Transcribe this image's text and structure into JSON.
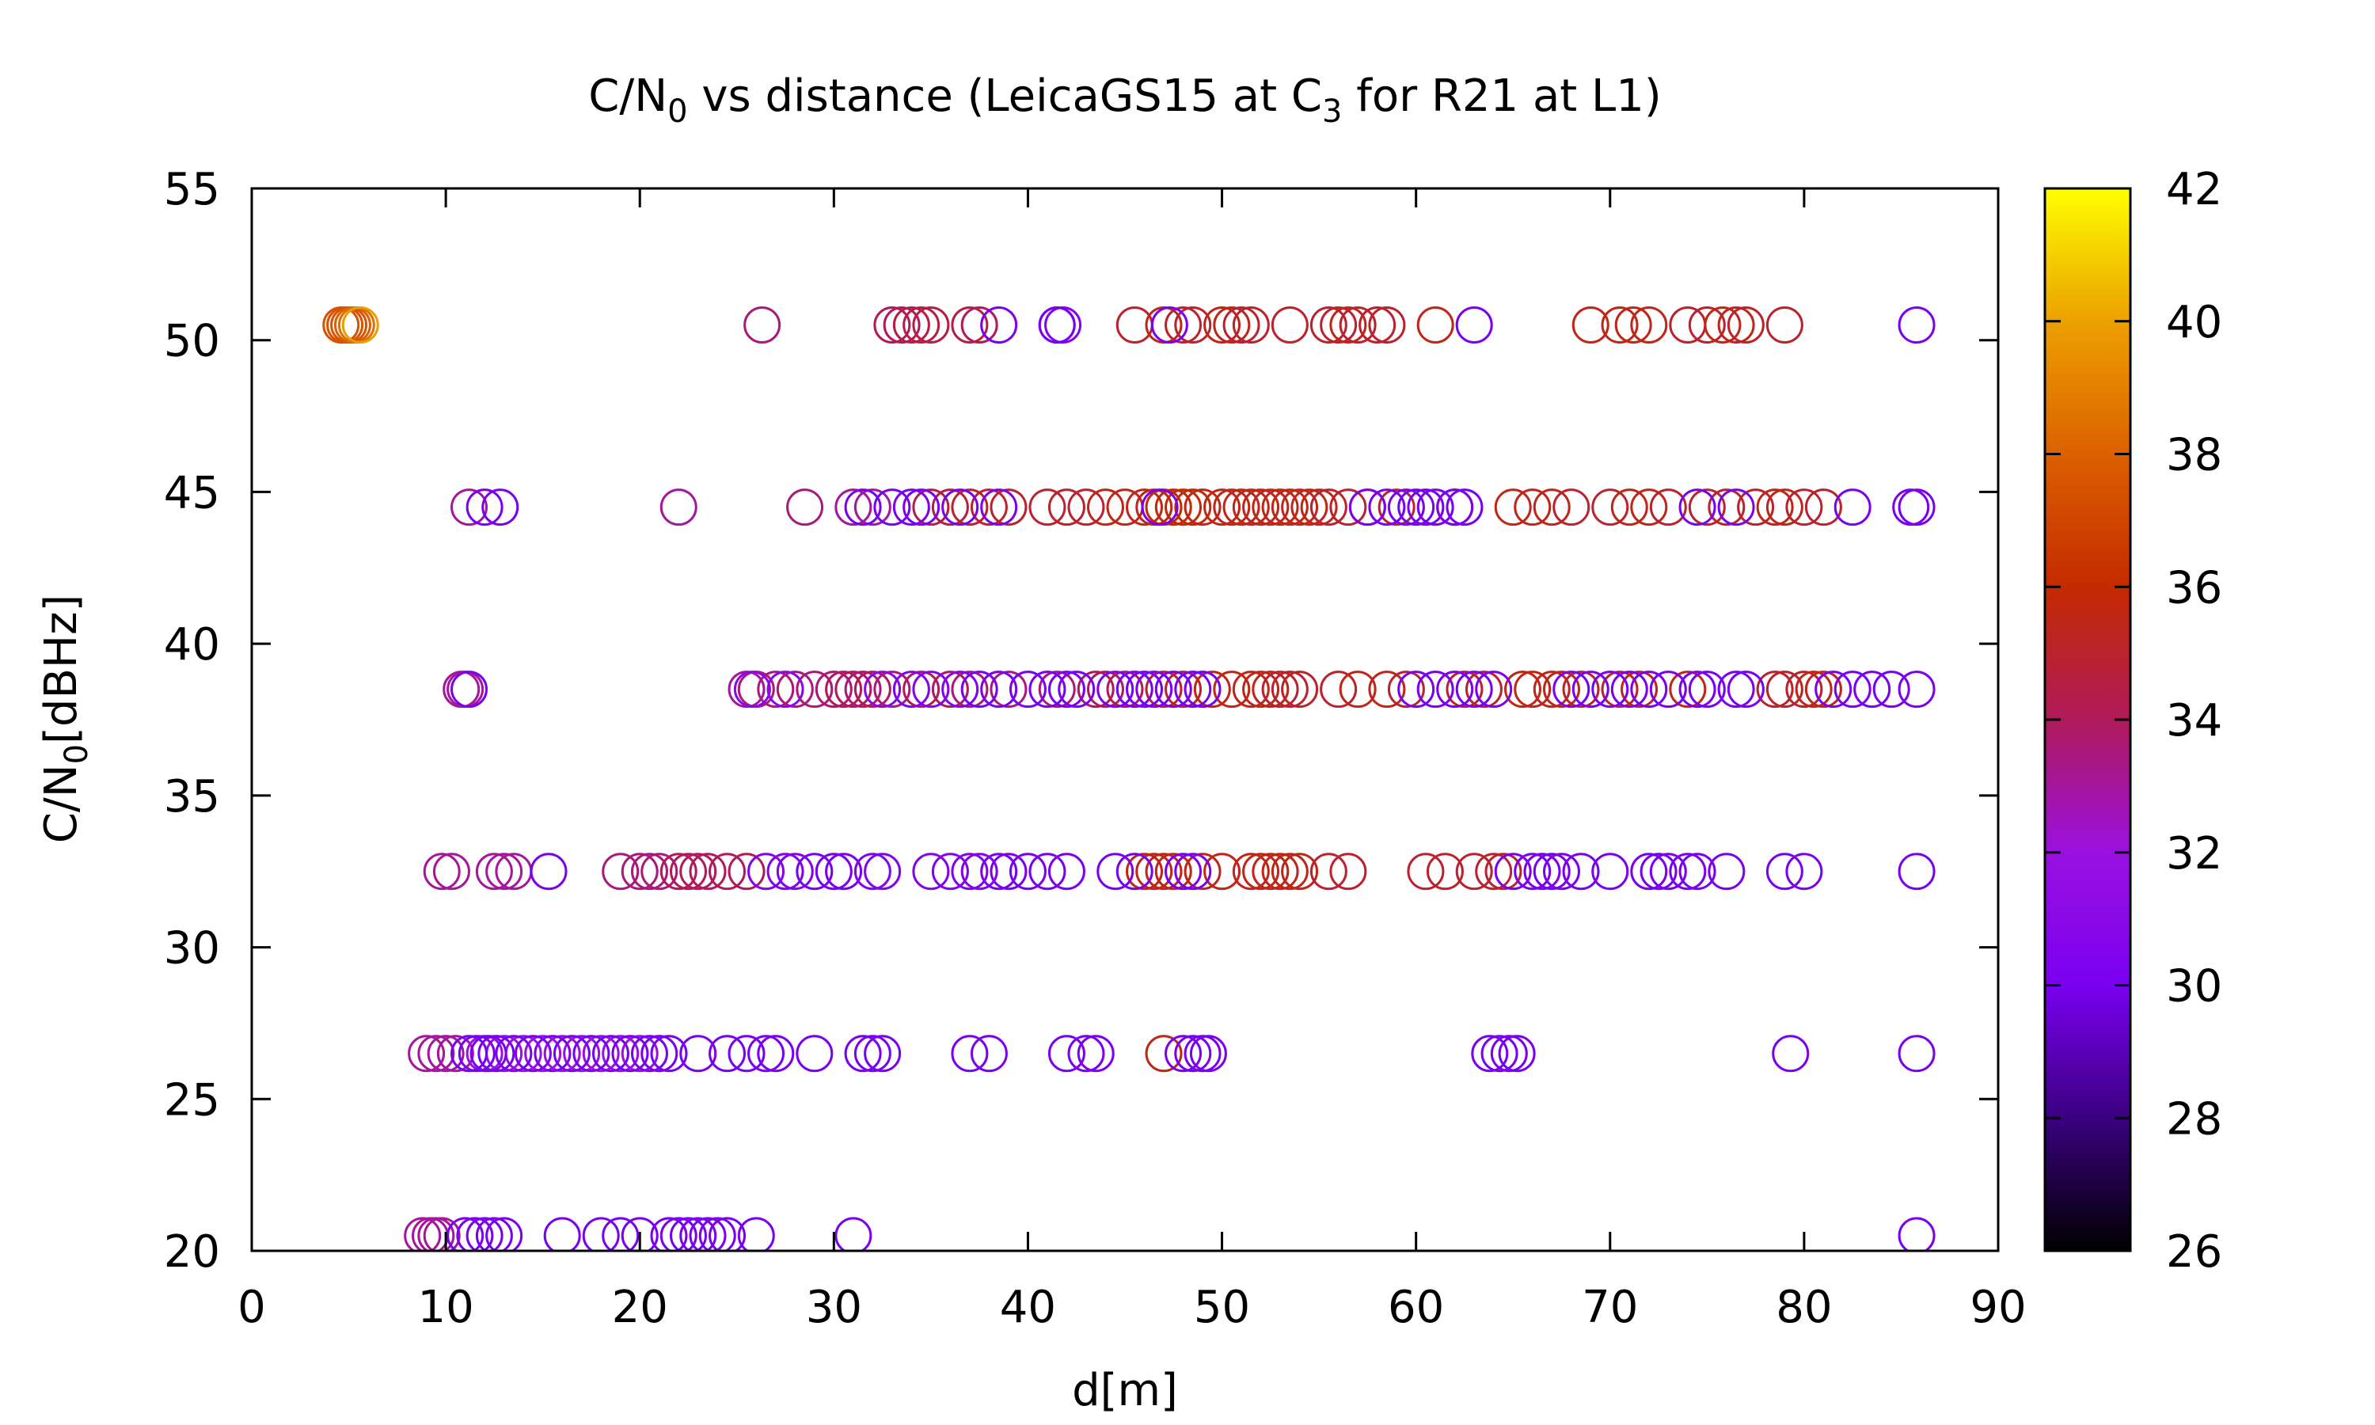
{
  "chart_data": {
    "type": "scatter",
    "title": {
      "main": "C/N",
      "sub": "0",
      "rest": " vs distance (LeicaGS15 at C",
      "sub2": "3",
      "rest2": " for R21 at L1)"
    },
    "xlabel": "d[m]",
    "ylabel": {
      "main": "C/N",
      "sub": "0",
      "rest": "[dBHz]"
    },
    "xlim": [
      0,
      90
    ],
    "ylim": [
      20,
      55
    ],
    "x_ticks": [
      "0",
      "10",
      "20",
      "30",
      "40",
      "50",
      "60",
      "70",
      "80",
      "90"
    ],
    "y_ticks": [
      "20",
      "25",
      "30",
      "35",
      "40",
      "45",
      "50",
      "55"
    ],
    "colorbar": {
      "range": [
        26,
        42
      ],
      "ticks": [
        "26",
        "28",
        "30",
        "32",
        "34",
        "36",
        "38",
        "40",
        "42"
      ]
    },
    "grid": false,
    "marker": "open-circle",
    "series": [
      {
        "y": 50.5,
        "x": [
          4.6,
          4.8,
          5.0,
          5.2,
          5.4,
          5.6,
          26.3,
          33.0,
          33.5,
          34.0,
          34.5,
          35.0,
          37.0,
          37.5,
          41.5,
          41.8,
          45.5,
          47.0,
          48.0,
          48.5,
          50.0,
          50.5,
          51.0,
          51.5,
          53.5,
          55.5,
          56.0,
          56.5,
          57.0,
          58.0,
          58.5,
          61.0,
          69.0,
          70.5,
          71.2,
          72.0,
          74.0,
          75.0,
          75.8,
          76.5,
          77.0,
          79.0
        ],
        "c": [
          37.5,
          37.5,
          37.5,
          38,
          38.5,
          40,
          33.5,
          34,
          34,
          34.5,
          34.5,
          34.5,
          34.5,
          34,
          30,
          30.5,
          35,
          35.5,
          35,
          35,
          35.5,
          35.5,
          35,
          35,
          35,
          35,
          35,
          35.5,
          35,
          35,
          35,
          35.5,
          35.5,
          35.5,
          35.5,
          35.5,
          35,
          35,
          35.5,
          35.5,
          35,
          35
        ]
      },
      {
        "y": 50.5,
        "x": [
          38.5,
          41.5,
          47.3,
          63.0,
          85.8
        ],
        "c": [
          30,
          30,
          30,
          30,
          30
        ]
      },
      {
        "y": 44.5,
        "x": [
          11.2,
          12.0,
          22.0,
          28.5,
          31.0,
          32.0,
          35.0,
          36.0,
          37.0,
          38.0,
          39.0,
          41.0,
          42.0,
          43.0,
          44.0,
          45.0,
          46.0,
          46.5,
          47.0,
          47.5,
          48.0,
          48.5,
          49.0,
          50.0,
          50.5,
          51.0,
          51.5,
          52.0,
          52.5,
          53.0,
          53.5,
          54.0,
          54.5,
          55.0,
          55.5,
          56.5,
          57.5,
          59.0,
          62.0,
          65.0,
          66.0,
          67.0,
          68.0,
          70.0,
          71.0,
          72.0,
          73.0,
          75.0,
          76.0,
          77.5,
          78.5,
          79.0,
          80.0,
          81.0
        ],
        "c": [
          33,
          30,
          33,
          33.5,
          33,
          33,
          34.5,
          34.5,
          35,
          35,
          35,
          35,
          35,
          35,
          35.5,
          35.5,
          35.5,
          35.5,
          36,
          36,
          36,
          36,
          35.5,
          35.5,
          35.5,
          35.5,
          35.5,
          35.5,
          35.5,
          35.5,
          35.5,
          35.5,
          35.5,
          35.5,
          35,
          35,
          35,
          35,
          35.5,
          35.5,
          35.5,
          35.5,
          35,
          35,
          35.5,
          35.5,
          35,
          35,
          35,
          35,
          35.5,
          35.5,
          35,
          35
        ]
      },
      {
        "y": 44.5,
        "x": [
          12.8,
          31.5,
          33.0,
          34.0,
          34.5,
          36.5,
          38.5,
          46.8,
          57.5,
          58.5,
          59.5,
          60.0,
          60.5,
          61.0,
          62.0,
          62.5,
          74.5,
          76.5,
          82.5,
          85.5,
          85.8
        ],
        "c": [
          30,
          30,
          30,
          30,
          30,
          30,
          30,
          30,
          30,
          30,
          30,
          30,
          30,
          30,
          30,
          30,
          30,
          30,
          30,
          30,
          30
        ]
      },
      {
        "y": 38.5,
        "x": [
          10.8,
          11.0,
          25.5,
          26.0,
          27.0,
          28.0,
          29.0,
          30.0,
          30.5,
          31.0,
          31.5,
          32.0,
          33.0,
          34.5,
          36.0,
          37.0,
          39.0,
          41.5,
          43.5,
          44.0,
          45.0,
          47.0,
          48.0,
          49.5,
          50.5,
          51.5,
          52.0,
          52.5,
          53.0,
          53.5,
          54.0,
          56.0,
          57.0,
          58.5,
          59.5,
          62.5,
          63.5,
          65.5,
          66.0,
          67.0,
          67.5,
          68.5,
          70.5,
          71.5,
          74.0,
          78.5,
          79.0,
          80.0,
          80.5,
          81.0
        ],
        "c": [
          33,
          33,
          33,
          33.5,
          33.5,
          33.5,
          33.5,
          33.5,
          34,
          34,
          33.5,
          34,
          33.5,
          34,
          34,
          33.5,
          33.5,
          33.5,
          34,
          34,
          34,
          35,
          35,
          35.5,
          35.5,
          35.5,
          35.5,
          35.5,
          35,
          35,
          35,
          35,
          35.5,
          35.5,
          35,
          35,
          35,
          35.5,
          35.5,
          35.5,
          35.5,
          35,
          35,
          35.5,
          35.5,
          35,
          35,
          35,
          35.5,
          35.5
        ]
      },
      {
        "y": 38.5,
        "x": [
          11.2,
          25.8,
          27.5,
          32.5,
          34.0,
          35.0,
          36.5,
          37.5,
          38.5,
          40.0,
          41.0,
          42.0,
          42.5,
          44.5,
          45.5,
          46.0,
          46.5,
          47.5,
          48.5,
          49.0,
          60.0,
          61.0,
          62.0,
          63.0,
          64.0,
          68.0,
          69.0,
          70.0,
          71.0,
          72.0,
          73.0,
          74.5,
          75.0,
          76.5,
          77.0,
          81.5,
          82.5,
          83.5,
          84.5,
          85.8
        ],
        "c": [
          30,
          31,
          31,
          31,
          30.5,
          30.5,
          30.5,
          30,
          30,
          30,
          30,
          30,
          30,
          30,
          30,
          30,
          30,
          30,
          30,
          30,
          30,
          30,
          30,
          30,
          30,
          30,
          30,
          30,
          30,
          30,
          30,
          30,
          30,
          30,
          30,
          30,
          30,
          30,
          30,
          30
        ]
      },
      {
        "y": 32.5,
        "x": [
          9.8,
          10.3,
          12.5,
          13.0,
          13.5,
          19.0,
          20.0,
          20.5,
          21.0,
          22.0,
          22.5,
          23.0,
          23.5,
          24.5,
          25.5,
          46.0,
          46.5,
          47.0,
          47.5,
          49.0,
          50.0,
          51.5,
          52.0,
          52.5,
          53.0,
          53.5,
          54.0,
          55.5,
          56.5,
          60.5,
          61.5,
          63.0,
          64.0,
          64.5
        ],
        "c": [
          33,
          33,
          33,
          33,
          33,
          33.5,
          33.5,
          33.5,
          33.5,
          34,
          34,
          34,
          34,
          34,
          34,
          35.5,
          35.5,
          35.5,
          35.5,
          35.5,
          35.5,
          35.5,
          35.5,
          35.5,
          35.5,
          35.5,
          35.5,
          35,
          35,
          35,
          35,
          35,
          35,
          35
        ]
      },
      {
        "y": 32.5,
        "x": [
          15.3,
          26.5,
          27.5,
          28.0,
          29.0,
          30.0,
          30.5,
          32.0,
          32.5,
          35.0,
          36.0,
          37.0,
          37.5,
          38.5,
          39.0,
          40.0,
          41.0,
          42.0,
          44.5,
          45.5,
          48.0,
          48.5,
          65.0,
          66.0,
          66.5,
          67.0,
          67.5,
          68.5,
          70.0,
          72.0,
          72.5,
          73.0,
          74.0,
          74.5,
          76.0,
          79.0,
          80.0,
          85.8
        ],
        "c": [
          30,
          30.5,
          30.5,
          30.5,
          30,
          30,
          30,
          30.5,
          30.5,
          30.5,
          30.5,
          30.5,
          30.5,
          30,
          30,
          30,
          30,
          30,
          30,
          30,
          30,
          30,
          30,
          30,
          30,
          30,
          30,
          30,
          30,
          30,
          30,
          30,
          30,
          30,
          30,
          30,
          30,
          30
        ]
      },
      {
        "y": 26.5,
        "x": [
          9.0,
          9.5,
          10.0,
          10.5,
          12.0,
          13.0,
          14.0,
          15.0,
          16.0,
          17.0,
          18.0,
          19.0,
          20.0,
          47.0
        ],
        "c": [
          33,
          33,
          33,
          33,
          32,
          32,
          32,
          32,
          32,
          32,
          32,
          32,
          32,
          35.5
        ]
      },
      {
        "y": 26.5,
        "x": [
          11.2,
          11.6,
          12.2,
          12.6,
          13.5,
          14.5,
          15.5,
          16.5,
          17.5,
          18.5,
          19.5,
          20.5,
          21.0,
          21.5,
          23.0,
          24.5,
          25.5,
          26.5,
          27.0,
          29.0,
          31.5,
          32.0,
          32.5,
          37.0,
          38.0,
          42.0,
          43.0,
          43.5,
          48.0,
          48.5,
          49.0,
          49.3,
          63.8,
          64.3,
          64.8,
          65.2,
          79.3,
          85.8
        ],
        "c": [
          30,
          30,
          30,
          30,
          30,
          30,
          30,
          30,
          30,
          30,
          30,
          30,
          30,
          30,
          30,
          30,
          30,
          30,
          30,
          30,
          30,
          30,
          30,
          30,
          30,
          30,
          30,
          30,
          30,
          30,
          30,
          30,
          30,
          30,
          30,
          30,
          30,
          30
        ]
      },
      {
        "y": 20.5,
        "x": [
          8.8,
          9.2,
          9.5,
          9.8
        ],
        "c": [
          33,
          33,
          33,
          33
        ]
      },
      {
        "y": 20.5,
        "x": [
          11.0,
          11.5,
          12.0,
          12.5,
          13.0,
          16.0,
          18.0,
          19.0,
          20.0,
          21.5,
          22.0,
          22.5,
          23.0,
          23.5,
          24.0,
          24.5,
          26.0,
          31.0,
          85.8
        ],
        "c": [
          30,
          30,
          30,
          30,
          30,
          30,
          30,
          30,
          30,
          30,
          30,
          30,
          30,
          30,
          30,
          30,
          30,
          30,
          30
        ]
      }
    ]
  }
}
